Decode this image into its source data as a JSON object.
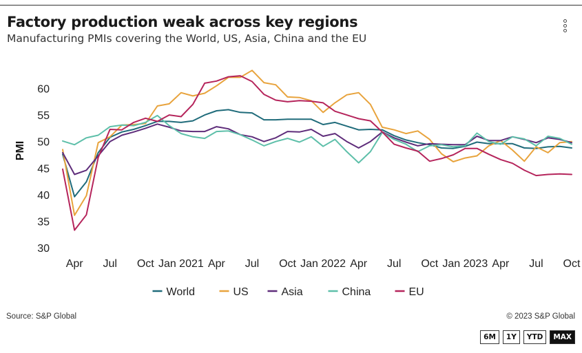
{
  "header": {
    "title": "Factory production weak across key regions",
    "subtitle": "Manufacturing PMIs covering the World, US, Asia, China and the EU"
  },
  "footer": {
    "source": "Source: S&P Global",
    "copyright": "© 2023 S&P Global"
  },
  "range_buttons": [
    {
      "label": "6M",
      "active": false
    },
    {
      "label": "1Y",
      "active": false
    },
    {
      "label": "YTD",
      "active": false
    },
    {
      "label": "MAX",
      "active": true
    }
  ],
  "menu_icon": "kebab-menu-icon",
  "chart_data": {
    "type": "line",
    "title": "Factory production weak across key regions",
    "subtitle": "Manufacturing PMIs covering the World, US, Asia, China and the EU",
    "xlabel": "",
    "ylabel": "PMI",
    "ylim": [
      30,
      65
    ],
    "yticks": [
      30,
      35,
      40,
      45,
      50,
      55,
      60
    ],
    "grid": false,
    "legend_position": "bottom",
    "x": [
      "2020-03",
      "2020-04",
      "2020-05",
      "2020-06",
      "2020-07",
      "2020-08",
      "2020-09",
      "2020-10",
      "2020-11",
      "2020-12",
      "2021-01",
      "2021-02",
      "2021-03",
      "2021-04",
      "2021-05",
      "2021-06",
      "2021-07",
      "2021-08",
      "2021-09",
      "2021-10",
      "2021-11",
      "2021-12",
      "2022-01",
      "2022-02",
      "2022-03",
      "2022-04",
      "2022-05",
      "2022-06",
      "2022-07",
      "2022-08",
      "2022-09",
      "2022-10",
      "2022-11",
      "2022-12",
      "2023-01",
      "2023-02",
      "2023-03",
      "2023-04",
      "2023-05",
      "2023-06",
      "2023-07",
      "2023-08",
      "2023-09",
      "2023-10"
    ],
    "x_tick_labels": [
      {
        "x": "2020-04",
        "label": "Apr"
      },
      {
        "x": "2020-07",
        "label": "Jul"
      },
      {
        "x": "2020-10",
        "label": "Oct"
      },
      {
        "x": "2021-01",
        "label": "Jan 2021"
      },
      {
        "x": "2021-04",
        "label": "Apr"
      },
      {
        "x": "2021-07",
        "label": "Jul"
      },
      {
        "x": "2021-10",
        "label": "Oct"
      },
      {
        "x": "2022-01",
        "label": "Jan 2022"
      },
      {
        "x": "2022-04",
        "label": "Apr"
      },
      {
        "x": "2022-07",
        "label": "Jul"
      },
      {
        "x": "2022-10",
        "label": "Oct"
      },
      {
        "x": "2023-01",
        "label": "Jan 2023"
      },
      {
        "x": "2023-04",
        "label": "Apr"
      },
      {
        "x": "2023-07",
        "label": "Jul"
      },
      {
        "x": "2023-10",
        "label": "Oct"
      }
    ],
    "series": [
      {
        "name": "World",
        "color": "#1f6b7a",
        "values": [
          47.6,
          39.6,
          42.4,
          47.9,
          50.8,
          51.8,
          52.3,
          53.0,
          53.8,
          53.8,
          53.6,
          53.9,
          55.0,
          55.8,
          56.0,
          55.5,
          55.4,
          54.1,
          54.1,
          54.2,
          54.2,
          54.2,
          53.2,
          53.6,
          52.9,
          52.2,
          52.3,
          52.2,
          51.1,
          50.3,
          49.8,
          49.4,
          48.8,
          48.7,
          49.1,
          49.9,
          49.6,
          49.6,
          49.6,
          48.8,
          48.7,
          49.0,
          49.1,
          48.8
        ]
      },
      {
        "name": "US",
        "color": "#e8a33c",
        "values": [
          48.5,
          36.1,
          39.8,
          49.8,
          50.9,
          53.1,
          53.2,
          53.4,
          56.7,
          57.1,
          59.2,
          58.6,
          59.1,
          60.5,
          62.1,
          62.1,
          63.4,
          61.1,
          60.7,
          58.4,
          58.3,
          57.7,
          55.5,
          57.3,
          58.8,
          59.2,
          57.0,
          52.7,
          52.2,
          51.5,
          52.0,
          50.4,
          47.7,
          46.2,
          46.9,
          47.3,
          49.2,
          50.2,
          48.4,
          46.3,
          49.0,
          47.9,
          49.8,
          50.0
        ]
      },
      {
        "name": "Asia",
        "color": "#5e2c7a",
        "values": [
          47.9,
          43.8,
          44.6,
          47.3,
          50.0,
          51.2,
          51.8,
          52.5,
          53.3,
          52.7,
          52.0,
          51.9,
          51.9,
          52.8,
          52.4,
          51.3,
          50.9,
          50.0,
          50.7,
          51.9,
          51.8,
          52.3,
          51.0,
          51.5,
          50.0,
          48.8,
          50.0,
          51.8,
          50.7,
          49.9,
          49.2,
          49.6,
          49.5,
          49.4,
          49.4,
          51.0,
          50.2,
          50.2,
          50.9,
          50.4,
          49.8,
          50.7,
          50.4,
          49.8
        ]
      },
      {
        "name": "China",
        "color": "#5dbfa9",
        "values": [
          50.1,
          49.4,
          50.7,
          51.2,
          52.8,
          53.1,
          53.0,
          53.6,
          54.9,
          53.0,
          51.5,
          50.9,
          50.6,
          51.9,
          52.0,
          51.3,
          50.3,
          49.2,
          50.0,
          50.6,
          49.9,
          50.9,
          49.1,
          50.4,
          48.1,
          46.0,
          48.1,
          51.7,
          50.4,
          49.5,
          48.1,
          49.2,
          49.4,
          49.0,
          49.2,
          51.6,
          50.0,
          49.5,
          50.9,
          50.5,
          49.2,
          51.0,
          50.6,
          49.5
        ]
      },
      {
        "name": "EU",
        "color": "#b5245b",
        "values": [
          44.8,
          33.3,
          36.2,
          47.0,
          52.3,
          52.2,
          53.6,
          54.4,
          53.8,
          55.0,
          54.7,
          57.0,
          61.0,
          61.4,
          62.2,
          62.4,
          61.3,
          58.9,
          57.8,
          57.5,
          57.7,
          57.6,
          57.3,
          55.7,
          55.0,
          54.3,
          53.9,
          51.8,
          49.5,
          48.8,
          48.2,
          46.3,
          46.8,
          47.5,
          48.7,
          48.7,
          47.6,
          46.6,
          45.9,
          44.6,
          43.6,
          43.8,
          43.9,
          43.8
        ]
      }
    ]
  }
}
